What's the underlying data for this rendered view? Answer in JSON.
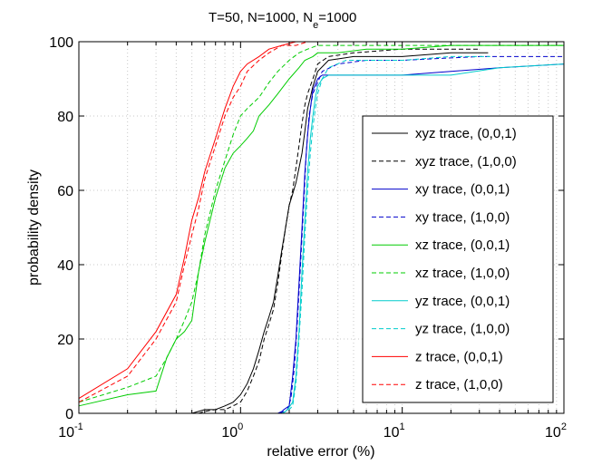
{
  "chart_data": {
    "type": "line",
    "title_main": "T=50, N=1000, N",
    "title_sub": "e",
    "title_tail": "=1000",
    "xlabel": "relative error (%)",
    "ylabel": "probability density",
    "x_scale": "log",
    "xlim": [
      0.1,
      100
    ],
    "ylim": [
      0,
      100
    ],
    "x_ticks": [
      {
        "base": "10",
        "exp": "-1",
        "value": 0.1
      },
      {
        "base": "10",
        "exp": "0",
        "value": 1
      },
      {
        "base": "10",
        "exp": "1",
        "value": 10
      },
      {
        "base": "10",
        "exp": "2",
        "value": 100
      }
    ],
    "y_ticks": [
      "0",
      "20",
      "40",
      "60",
      "80",
      "100"
    ],
    "grid": true,
    "legend_position": "right",
    "series": [
      {
        "name": "xyz trace, (0,0,1)",
        "color": "#000000",
        "dash": "solid",
        "points": [
          [
            0.5,
            0
          ],
          [
            0.55,
            0.5
          ],
          [
            0.6,
            1
          ],
          [
            0.7,
            1
          ],
          [
            0.8,
            2
          ],
          [
            0.9,
            3
          ],
          [
            1.0,
            5
          ],
          [
            1.1,
            8
          ],
          [
            1.2,
            12
          ],
          [
            1.3,
            17
          ],
          [
            1.4,
            22
          ],
          [
            1.5,
            26
          ],
          [
            1.6,
            30
          ],
          [
            1.7,
            37
          ],
          [
            1.8,
            44
          ],
          [
            1.9,
            50
          ],
          [
            2.0,
            56
          ],
          [
            2.1,
            59
          ],
          [
            2.2,
            62
          ],
          [
            2.3,
            66
          ],
          [
            2.4,
            70
          ],
          [
            2.5,
            76
          ],
          [
            2.6,
            82
          ],
          [
            2.7,
            85
          ],
          [
            2.8,
            88
          ],
          [
            3.0,
            92
          ],
          [
            3.5,
            95
          ],
          [
            5,
            96
          ],
          [
            10,
            96
          ],
          [
            20,
            97
          ],
          [
            34,
            97
          ]
        ]
      },
      {
        "name": "xyz trace, (1,0,0)",
        "color": "#000000",
        "dash": "dashed",
        "points": [
          [
            0.55,
            0
          ],
          [
            0.6,
            0.5
          ],
          [
            0.7,
            1
          ],
          [
            0.8,
            1
          ],
          [
            0.9,
            2
          ],
          [
            1.0,
            3
          ],
          [
            1.1,
            6
          ],
          [
            1.2,
            10
          ],
          [
            1.3,
            14
          ],
          [
            1.4,
            20
          ],
          [
            1.5,
            24
          ],
          [
            1.6,
            28
          ],
          [
            1.7,
            35
          ],
          [
            1.8,
            43
          ],
          [
            1.9,
            50
          ],
          [
            2.0,
            56
          ],
          [
            2.1,
            60
          ],
          [
            2.2,
            66
          ],
          [
            2.3,
            72
          ],
          [
            2.4,
            78
          ],
          [
            2.5,
            83
          ],
          [
            2.6,
            86
          ],
          [
            2.8,
            90
          ],
          [
            3.0,
            94
          ],
          [
            3.5,
            96
          ],
          [
            5,
            97
          ],
          [
            10,
            98
          ],
          [
            20,
            98
          ],
          [
            30,
            98
          ]
        ]
      },
      {
        "name": "xy trace, (0,0,1)",
        "color": "#0000cc",
        "dash": "solid",
        "points": [
          [
            1.7,
            0
          ],
          [
            1.8,
            0.5
          ],
          [
            1.85,
            1
          ],
          [
            2.0,
            2
          ],
          [
            2.1,
            10
          ],
          [
            2.2,
            20
          ],
          [
            2.3,
            35
          ],
          [
            2.4,
            50
          ],
          [
            2.5,
            65
          ],
          [
            2.6,
            75
          ],
          [
            2.7,
            82
          ],
          [
            2.8,
            87
          ],
          [
            3.0,
            90
          ],
          [
            3.2,
            91
          ],
          [
            4,
            91
          ],
          [
            7,
            91
          ],
          [
            10,
            91
          ],
          [
            20,
            92
          ],
          [
            40,
            93
          ],
          [
            100,
            94
          ]
        ]
      },
      {
        "name": "xy trace, (1,0,0)",
        "color": "#0000cc",
        "dash": "dashed",
        "points": [
          [
            1.75,
            0
          ],
          [
            1.85,
            0.5
          ],
          [
            1.95,
            1
          ],
          [
            2.05,
            4
          ],
          [
            2.15,
            12
          ],
          [
            2.25,
            25
          ],
          [
            2.35,
            40
          ],
          [
            2.45,
            55
          ],
          [
            2.55,
            70
          ],
          [
            2.65,
            80
          ],
          [
            2.8,
            86
          ],
          [
            3.0,
            89
          ],
          [
            3.2,
            92
          ],
          [
            4,
            94
          ],
          [
            6,
            95
          ],
          [
            10,
            95
          ],
          [
            30,
            96
          ],
          [
            100,
            96
          ]
        ]
      },
      {
        "name": "xz trace, (0,0,1)",
        "color": "#00cc00",
        "dash": "solid",
        "points": [
          [
            0.1,
            2
          ],
          [
            0.2,
            5
          ],
          [
            0.3,
            6
          ],
          [
            0.35,
            15
          ],
          [
            0.4,
            20
          ],
          [
            0.45,
            22
          ],
          [
            0.5,
            25
          ],
          [
            0.55,
            38
          ],
          [
            0.6,
            46
          ],
          [
            0.7,
            58
          ],
          [
            0.8,
            66
          ],
          [
            0.9,
            70
          ],
          [
            1.0,
            72
          ],
          [
            1.1,
            74
          ],
          [
            1.2,
            76
          ],
          [
            1.3,
            80
          ],
          [
            1.5,
            83
          ],
          [
            1.7,
            86
          ],
          [
            2.0,
            90
          ],
          [
            2.3,
            93
          ],
          [
            2.5,
            95
          ],
          [
            2.8,
            96
          ],
          [
            3.0,
            97
          ],
          [
            4,
            97
          ],
          [
            6,
            98
          ],
          [
            10,
            98
          ],
          [
            20,
            99
          ],
          [
            40,
            99
          ],
          [
            100,
            99
          ]
        ]
      },
      {
        "name": "xz trace, (1,0,0)",
        "color": "#00cc00",
        "dash": "dashed",
        "points": [
          [
            0.1,
            3
          ],
          [
            0.2,
            7
          ],
          [
            0.3,
            10
          ],
          [
            0.35,
            15
          ],
          [
            0.4,
            20
          ],
          [
            0.45,
            25
          ],
          [
            0.5,
            30
          ],
          [
            0.55,
            38
          ],
          [
            0.6,
            48
          ],
          [
            0.7,
            60
          ],
          [
            0.8,
            68
          ],
          [
            0.9,
            75
          ],
          [
            1.0,
            80
          ],
          [
            1.1,
            82
          ],
          [
            1.3,
            85
          ],
          [
            1.5,
            89
          ],
          [
            1.7,
            92
          ],
          [
            2.0,
            95
          ],
          [
            2.3,
            97
          ],
          [
            2.6,
            98
          ],
          [
            3.0,
            99
          ],
          [
            4,
            99
          ],
          [
            10,
            99
          ],
          [
            30,
            99
          ],
          [
            100,
            99
          ]
        ]
      },
      {
        "name": "yz trace, (0,0,1)",
        "color": "#00cccc",
        "dash": "solid",
        "points": [
          [
            1.8,
            0
          ],
          [
            1.9,
            0.5
          ],
          [
            1.95,
            1
          ],
          [
            2.1,
            3
          ],
          [
            2.2,
            10
          ],
          [
            2.3,
            22
          ],
          [
            2.4,
            38
          ],
          [
            2.5,
            52
          ],
          [
            2.6,
            65
          ],
          [
            2.7,
            74
          ],
          [
            2.8,
            80
          ],
          [
            2.9,
            85
          ],
          [
            3.0,
            88
          ],
          [
            3.2,
            90
          ],
          [
            3.5,
            91
          ],
          [
            6,
            91
          ],
          [
            10,
            91
          ],
          [
            20,
            91
          ],
          [
            40,
            93
          ],
          [
            100,
            94
          ]
        ]
      },
      {
        "name": "yz trace, (1,0,0)",
        "color": "#00cccc",
        "dash": "dashed",
        "points": [
          [
            1.8,
            0
          ],
          [
            1.9,
            0.5
          ],
          [
            2.0,
            1
          ],
          [
            2.1,
            2
          ],
          [
            2.2,
            8
          ],
          [
            2.3,
            20
          ],
          [
            2.4,
            33
          ],
          [
            2.5,
            48
          ],
          [
            2.6,
            60
          ],
          [
            2.7,
            70
          ],
          [
            2.8,
            77
          ],
          [
            2.9,
            82
          ],
          [
            3.0,
            86
          ],
          [
            3.2,
            90
          ],
          [
            3.5,
            93
          ],
          [
            4.5,
            95
          ],
          [
            10,
            95
          ],
          [
            20,
            96
          ],
          [
            35,
            96
          ]
        ]
      },
      {
        "name": "z trace, (0,0,1)",
        "color": "#ff0000",
        "dash": "solid",
        "points": [
          [
            0.1,
            4
          ],
          [
            0.2,
            12
          ],
          [
            0.3,
            22
          ],
          [
            0.4,
            32
          ],
          [
            0.45,
            42
          ],
          [
            0.5,
            52
          ],
          [
            0.55,
            58
          ],
          [
            0.6,
            65
          ],
          [
            0.7,
            74
          ],
          [
            0.8,
            82
          ],
          [
            0.9,
            88
          ],
          [
            1.0,
            92
          ],
          [
            1.1,
            94
          ],
          [
            1.3,
            96
          ],
          [
            1.5,
            98
          ],
          [
            1.8,
            99
          ],
          [
            2.2,
            100
          ],
          [
            2.8,
            100
          ]
        ]
      },
      {
        "name": "z trace, (1,0,0)",
        "color": "#ff0000",
        "dash": "dashed",
        "points": [
          [
            0.1,
            3
          ],
          [
            0.2,
            10
          ],
          [
            0.3,
            20
          ],
          [
            0.4,
            30
          ],
          [
            0.45,
            40
          ],
          [
            0.5,
            48
          ],
          [
            0.55,
            55
          ],
          [
            0.6,
            63
          ],
          [
            0.7,
            72
          ],
          [
            0.8,
            80
          ],
          [
            0.9,
            85
          ],
          [
            1.0,
            88
          ],
          [
            1.1,
            92
          ],
          [
            1.3,
            95
          ],
          [
            1.5,
            97
          ],
          [
            1.8,
            99
          ],
          [
            2.2,
            99
          ],
          [
            2.6,
            100
          ]
        ]
      }
    ]
  }
}
